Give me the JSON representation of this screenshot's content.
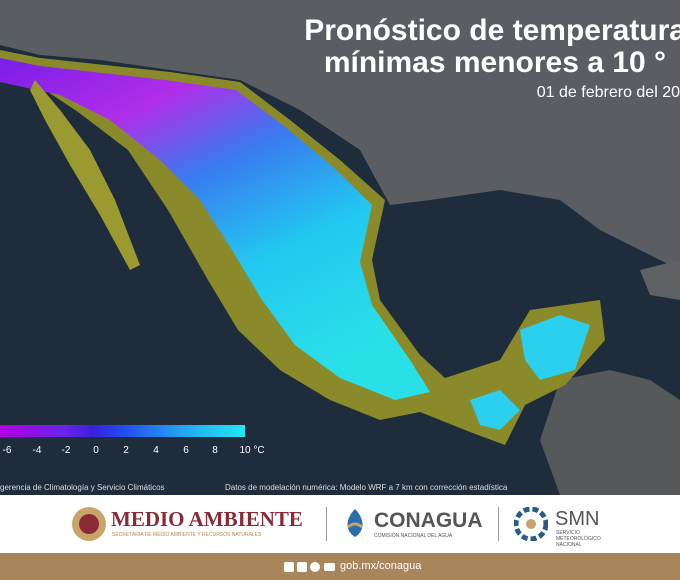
{
  "header": {
    "title_line1": "Pronóstico de temperatura",
    "title_line2": "mínimas menores a 10 °",
    "date": "01 de febrero del 20"
  },
  "legend": {
    "labels": [
      "-6",
      "-4",
      "-2",
      "0",
      "2",
      "4",
      "6",
      "8",
      "10 °C"
    ]
  },
  "credits": {
    "left": "gerencia de Climatología y Servicio Climáticos",
    "right": "Datos de modelación numérica: Modelo WRF a 7 km con corrección estadística"
  },
  "footer": {
    "medio_ambiente": "MEDIO AMBIENTE",
    "medio_ambiente_sub": "SECRETARÍA DE MEDIO AMBIENTE Y RECURSOS NATURALES",
    "conagua": "CONAGUA",
    "conagua_sub": "COMISIÓN NACIONAL DEL AGUA",
    "smn": "SMN",
    "smn_sub": "SERVICIO METEOROLÓGICO NACIONAL",
    "url": "gob.mx/conagua"
  }
}
